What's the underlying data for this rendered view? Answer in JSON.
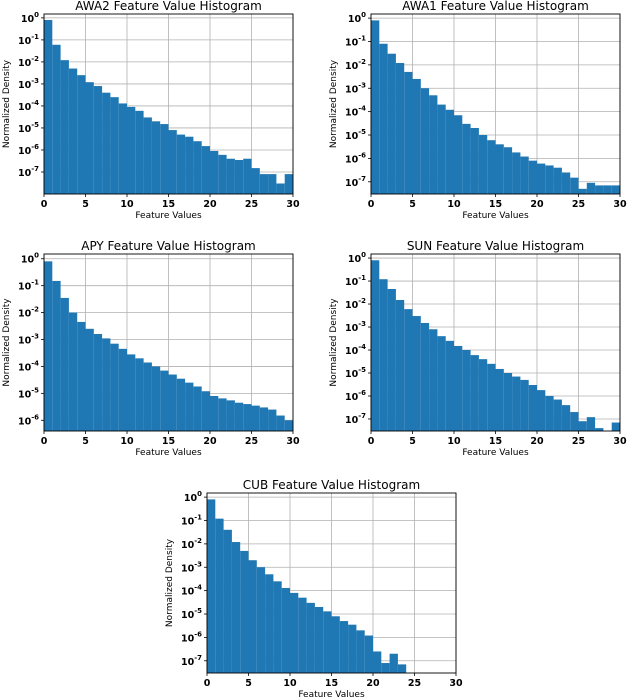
{
  "colors": {
    "bar": "#1f77b4",
    "grid": "#b0b0b0",
    "axis": "#000000",
    "background": "#ffffff"
  },
  "chart_data": [
    {
      "type": "bar",
      "title": "AWA2 Feature Value Histogram",
      "xlabel": "Feature Values",
      "ylabel": "Normalized Density",
      "xlim": [
        0,
        30
      ],
      "yscale": "log",
      "ylim": [
        1e-08,
        1.5
      ],
      "grid": true,
      "xticks": [
        0,
        5,
        10,
        15,
        20,
        25,
        30
      ],
      "yticks": [
        1,
        0.1,
        0.01,
        0.001,
        0.0001,
        1e-05,
        1e-06,
        1e-07
      ],
      "ytick_exponents": [
        "0",
        "-1",
        "-2",
        "-3",
        "-4",
        "-5",
        "-6",
        "-7"
      ],
      "bin_width": 1,
      "x": [
        0,
        1,
        2,
        3,
        4,
        5,
        6,
        7,
        8,
        9,
        10,
        11,
        12,
        13,
        14,
        15,
        16,
        17,
        18,
        19,
        20,
        21,
        22,
        23,
        24,
        25,
        26,
        27,
        28,
        29
      ],
      "values": [
        0.8,
        0.06,
        0.012,
        0.005,
        0.0025,
        0.0012,
        0.0008,
        0.0004,
        0.00025,
        0.00013,
        9e-05,
        6e-05,
        3e-05,
        2e-05,
        1.5e-05,
        8e-06,
        5e-06,
        4e-06,
        2.5e-06,
        1.5e-06,
        9e-07,
        6e-07,
        4e-07,
        3.5e-07,
        4e-07,
        1.5e-07,
        8e-08,
        8e-08,
        3e-08,
        8e-08
      ]
    },
    {
      "type": "bar",
      "title": "AWA1 Feature Value Histogram",
      "xlabel": "Feature Values",
      "ylabel": "Normalized Density",
      "xlim": [
        0,
        30
      ],
      "yscale": "log",
      "ylim": [
        3e-08,
        1.5
      ],
      "grid": true,
      "xticks": [
        0,
        5,
        10,
        15,
        20,
        25,
        30
      ],
      "yticks": [
        1,
        0.1,
        0.01,
        0.001,
        0.0001,
        1e-05,
        1e-06,
        1e-07
      ],
      "ytick_exponents": [
        "0",
        "-1",
        "-2",
        "-3",
        "-4",
        "-5",
        "-6",
        "-7"
      ],
      "bin_width": 1,
      "x": [
        0,
        1,
        2,
        3,
        4,
        5,
        6,
        7,
        8,
        9,
        10,
        11,
        12,
        13,
        14,
        15,
        16,
        17,
        18,
        19,
        20,
        21,
        22,
        23,
        24,
        25,
        26,
        27,
        28,
        29
      ],
      "values": [
        0.8,
        0.08,
        0.03,
        0.012,
        0.005,
        0.0025,
        0.001,
        0.0005,
        0.0002,
        0.00012,
        7e-05,
        3e-05,
        2e-05,
        1e-05,
        6e-06,
        4e-06,
        3e-06,
        1.8e-06,
        1.2e-06,
        8e-07,
        6e-07,
        5e-07,
        4e-07,
        2.5e-07,
        1.5e-07,
        5e-08,
        9e-08,
        7e-08,
        7e-08,
        7e-08
      ]
    },
    {
      "type": "bar",
      "title": "APY Feature Value Histogram",
      "xlabel": "Feature Values",
      "ylabel": "Normalized Density",
      "xlim": [
        0,
        30
      ],
      "yscale": "log",
      "ylim": [
        4e-07,
        1.5
      ],
      "grid": true,
      "xticks": [
        0,
        5,
        10,
        15,
        20,
        25,
        30
      ],
      "yticks": [
        1,
        0.1,
        0.01,
        0.001,
        0.0001,
        1e-05,
        1e-06
      ],
      "ytick_exponents": [
        "0",
        "-1",
        "-2",
        "-3",
        "-4",
        "-5",
        "-6"
      ],
      "bin_width": 1,
      "x": [
        0,
        1,
        2,
        3,
        4,
        5,
        6,
        7,
        8,
        9,
        10,
        11,
        12,
        13,
        14,
        15,
        16,
        17,
        18,
        19,
        20,
        21,
        22,
        23,
        24,
        25,
        26,
        27,
        28,
        29
      ],
      "values": [
        0.8,
        0.15,
        0.035,
        0.01,
        0.0045,
        0.0025,
        0.0016,
        0.0011,
        0.0007,
        0.00045,
        0.00028,
        0.0002,
        0.00014,
        0.0001,
        7e-05,
        5e-05,
        3.5e-05,
        2.5e-05,
        1.8e-05,
        1.2e-05,
        8e-06,
        6.5e-06,
        5.5e-06,
        4.5e-06,
        4e-06,
        3.5e-06,
        3e-06,
        2.5e-06,
        1.5e-06,
        1e-06
      ]
    },
    {
      "type": "bar",
      "title": "SUN Feature Value Histogram",
      "xlabel": "Feature Values",
      "ylabel": "Normalized Density",
      "xlim": [
        0,
        30
      ],
      "yscale": "log",
      "ylim": [
        3e-08,
        1.5
      ],
      "grid": true,
      "xticks": [
        0,
        5,
        10,
        15,
        20,
        25,
        30
      ],
      "yticks": [
        1,
        0.1,
        0.01,
        0.001,
        0.0001,
        1e-05,
        1e-06,
        1e-07
      ],
      "ytick_exponents": [
        "0",
        "-1",
        "-2",
        "-3",
        "-4",
        "-5",
        "-6",
        "-7"
      ],
      "bin_width": 1,
      "x": [
        0,
        1,
        2,
        3,
        4,
        5,
        6,
        7,
        8,
        9,
        10,
        11,
        12,
        13,
        14,
        15,
        16,
        17,
        18,
        19,
        20,
        21,
        22,
        23,
        24,
        25,
        26,
        27,
        28,
        29
      ],
      "values": [
        0.8,
        0.12,
        0.045,
        0.015,
        0.006,
        0.003,
        0.0015,
        0.0008,
        0.0004,
        0.00025,
        0.00015,
        0.0001,
        6e-05,
        4e-05,
        2.5e-05,
        1.5e-05,
        1e-05,
        7e-06,
        5e-06,
        3e-06,
        1.8e-06,
        1e-06,
        7e-07,
        4e-07,
        2e-07,
        8e-08,
        1.2e-07,
        4e-08,
        3e-08,
        7e-08
      ]
    },
    {
      "type": "bar",
      "title": "CUB Feature Value Histogram",
      "xlabel": "Feature Values",
      "ylabel": "Normalized Density",
      "xlim": [
        0,
        30
      ],
      "yscale": "log",
      "ylim": [
        3e-08,
        1.5
      ],
      "grid": true,
      "xticks": [
        0,
        5,
        10,
        15,
        20,
        25,
        30
      ],
      "yticks": [
        1,
        0.1,
        0.01,
        0.001,
        0.0001,
        1e-05,
        1e-06,
        1e-07
      ],
      "ytick_exponents": [
        "0",
        "-1",
        "-2",
        "-3",
        "-4",
        "-5",
        "-6",
        "-7"
      ],
      "bin_width": 1,
      "x": [
        0,
        1,
        2,
        3,
        4,
        5,
        6,
        7,
        8,
        9,
        10,
        11,
        12,
        13,
        14,
        15,
        16,
        17,
        18,
        19,
        20,
        21,
        22,
        23
      ],
      "values": [
        0.8,
        0.12,
        0.04,
        0.012,
        0.005,
        0.002,
        0.001,
        0.0005,
        0.00025,
        0.00013,
        8e-05,
        5e-05,
        3e-05,
        2e-05,
        1.3e-05,
        8e-06,
        5e-06,
        3.5e-06,
        2e-06,
        1.2e-06,
        2.5e-07,
        8e-08,
        2e-07,
        7e-08
      ]
    }
  ]
}
